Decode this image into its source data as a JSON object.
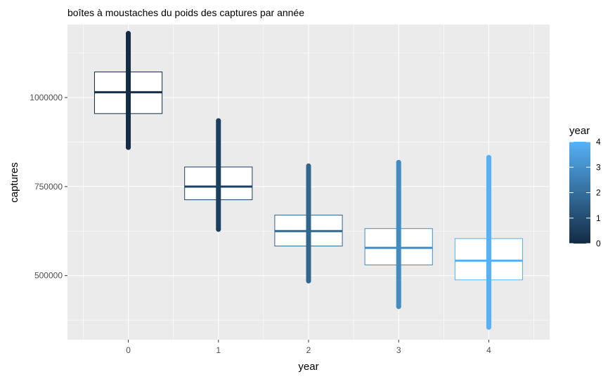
{
  "chart_data": {
    "type": "box",
    "title": "boîtes à moustaches du poids des captures par année",
    "xlabel": "year",
    "ylabel": "captures",
    "categories": [
      "0",
      "1",
      "2",
      "3",
      "4"
    ],
    "y_ticks": [
      500000,
      750000,
      1000000
    ],
    "y_tick_labels": [
      "500000",
      "750000",
      "1000000"
    ],
    "ylim": [
      320000,
      1205000
    ],
    "grid": true,
    "legend": {
      "title": "year",
      "position": "right",
      "type": "colorbar",
      "range": [
        0,
        4
      ],
      "ticks": [
        "0",
        "1",
        "2",
        "3",
        "4"
      ],
      "colors": [
        "#132b43",
        "#56b1f7"
      ]
    },
    "boxes": [
      {
        "category": "0",
        "color": "#132b43",
        "q1": 955000,
        "median": 1015000,
        "q3": 1072000,
        "whisker_low": 860000,
        "whisker_high": 1180000
      },
      {
        "category": "1",
        "color": "#1d3f5f",
        "q1": 713000,
        "median": 750000,
        "q3": 805000,
        "whisker_low": 630000,
        "whisker_high": 935000
      },
      {
        "category": "2",
        "color": "#31668f",
        "q1": 583000,
        "median": 625000,
        "q3": 670000,
        "whisker_low": 485000,
        "whisker_high": 808000
      },
      {
        "category": "3",
        "color": "#438cc2",
        "q1": 530000,
        "median": 578000,
        "q3": 632000,
        "whisker_low": 413000,
        "whisker_high": 818000
      },
      {
        "category": "4",
        "color": "#56b1f7",
        "q1": 488000,
        "median": 542000,
        "q3": 604000,
        "whisker_low": 355000,
        "whisker_high": 832000
      }
    ]
  }
}
